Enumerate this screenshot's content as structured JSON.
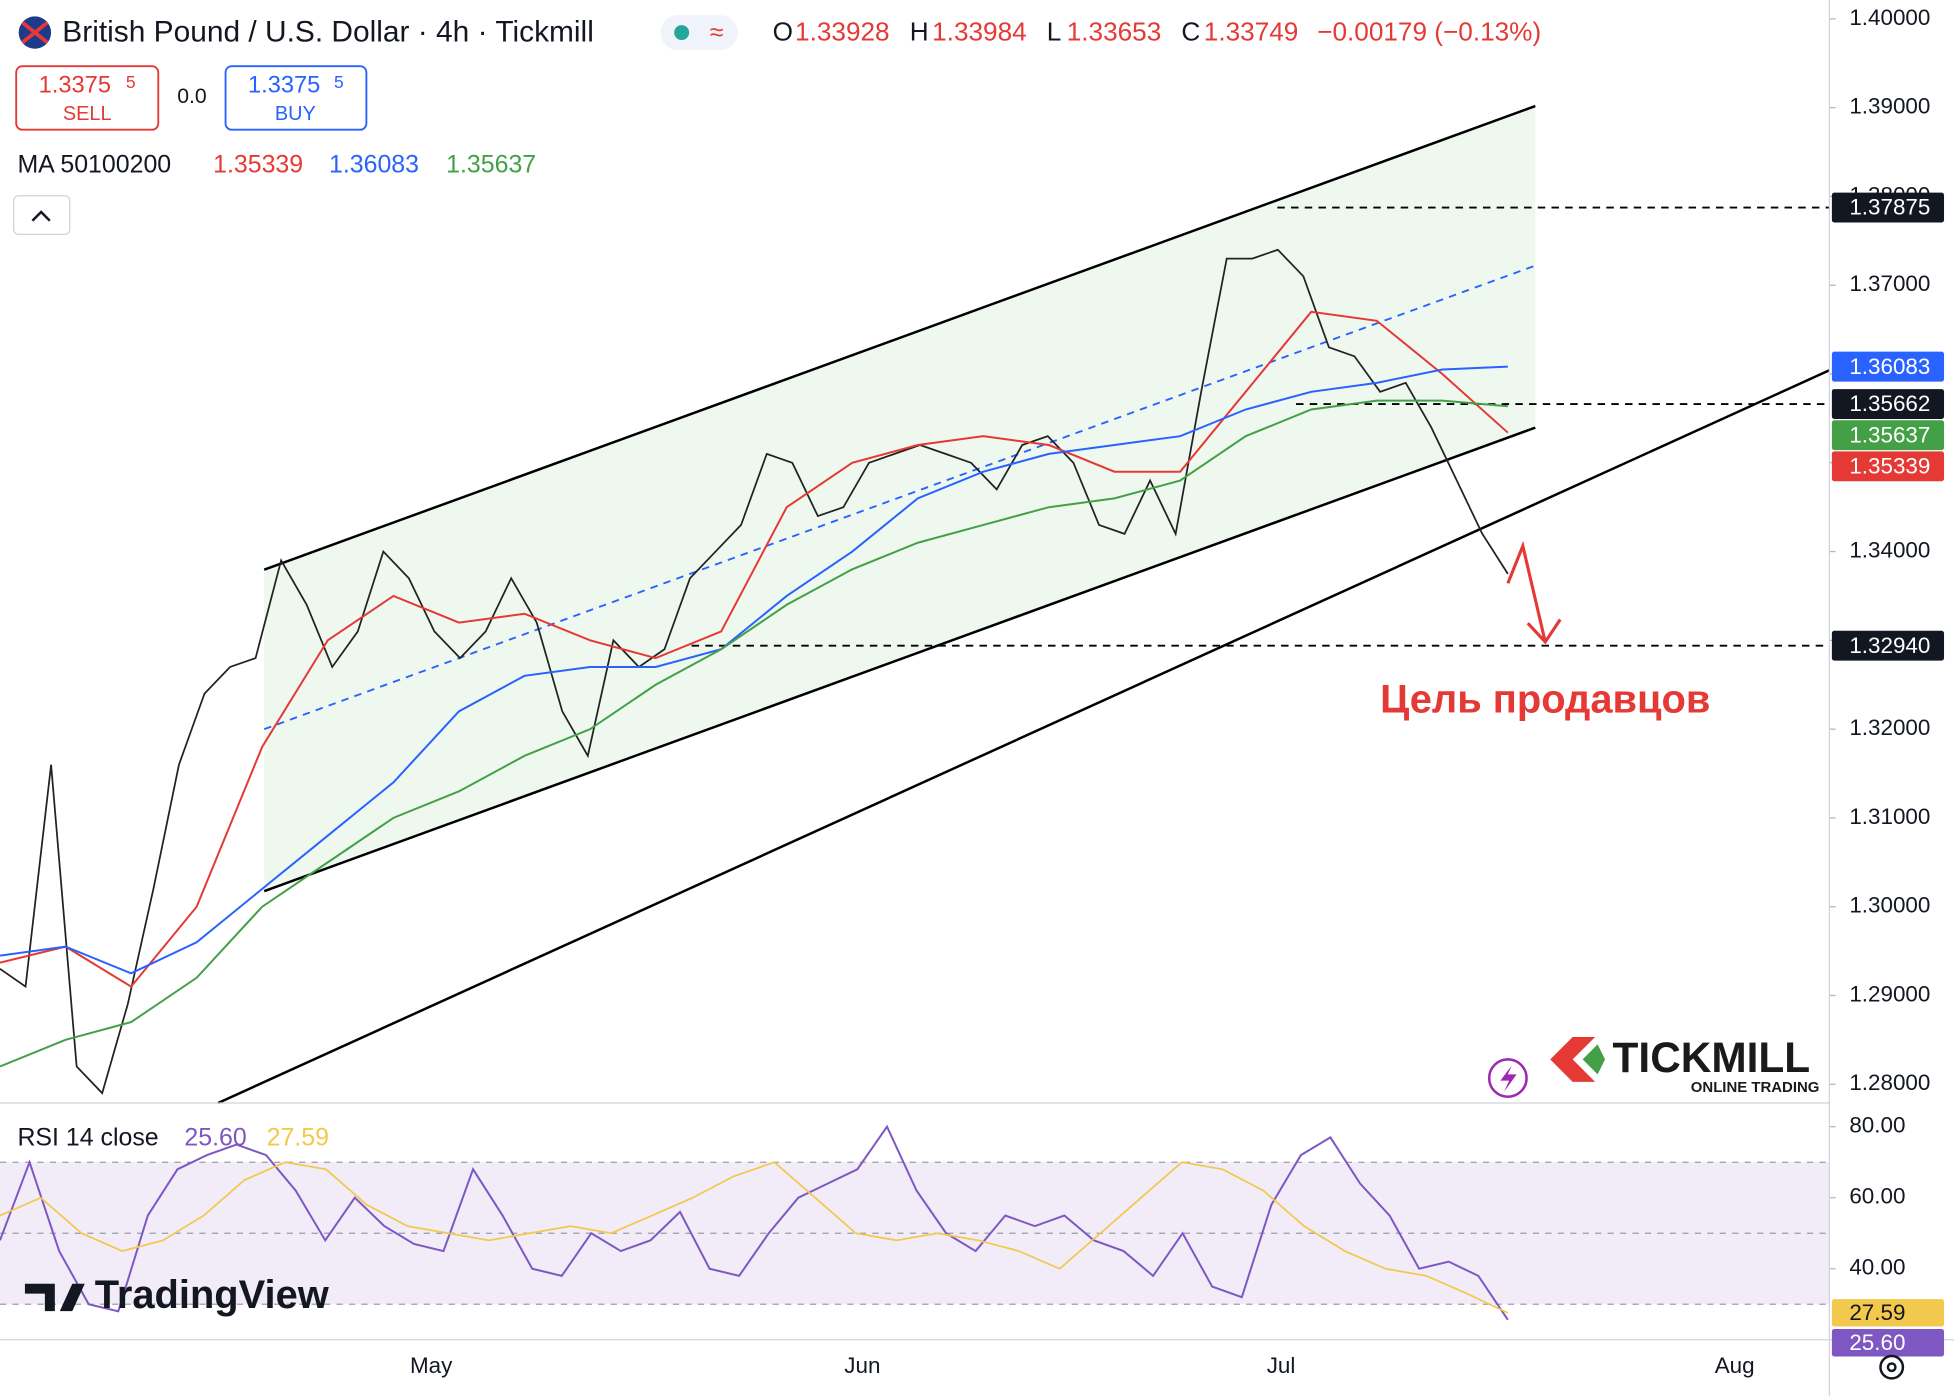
{
  "chart_data": [
    {
      "type": "line",
      "title": "British Pound / U.S. Dollar · 4h · Tickmill",
      "ohlc": [
        {
          "name": "O",
          "value": 1.33928
        },
        {
          "name": "H",
          "value": 1.33984
        },
        {
          "name": "L",
          "value": 1.33653
        },
        {
          "name": "C",
          "value": 1.33749
        }
      ],
      "change": "−0.00179 (−0.13%)",
      "trade": {
        "sell": {
          "price": "1.3375",
          "pip": "5",
          "label": "SELL"
        },
        "spread": "0.0",
        "buy": {
          "price": "1.3375",
          "pip": "5",
          "label": "BUY"
        }
      },
      "ma_legend": "MA 50100200",
      "ylim": [
        1.27789,
        1.40211
      ],
      "yticks": [
        {
          "value": 1.4,
          "label": "1.40000"
        },
        {
          "value": 1.39,
          "label": "1.39000"
        },
        {
          "value": 1.38,
          "label": "1.38000"
        },
        {
          "value": 1.37,
          "label": "1.37000"
        },
        {
          "value": 1.36,
          "label": "1.36000"
        },
        {
          "value": 1.35,
          "label": "1.35000"
        },
        {
          "value": 1.34,
          "label": "1.34000"
        },
        {
          "value": 1.33,
          "label": "1.33000"
        },
        {
          "value": 1.32,
          "label": "1.32000"
        },
        {
          "value": 1.31,
          "label": "1.31000"
        },
        {
          "value": 1.3,
          "label": "1.30000"
        },
        {
          "value": 1.29,
          "label": "1.29000"
        },
        {
          "value": 1.28,
          "label": "1.28000"
        }
      ],
      "x_labels": [
        "May",
        "Jun",
        "Jul",
        "Aug"
      ],
      "series": [
        {
          "color": "#222222",
          "values": [
            1.293,
            1.291,
            1.316,
            1.282,
            1.279,
            1.289,
            1.302,
            1.316,
            1.324,
            1.327,
            1.328,
            1.339,
            1.334,
            1.327,
            1.331,
            1.34,
            1.337,
            1.331,
            1.328,
            1.331,
            1.337,
            1.332,
            1.322,
            1.317,
            1.33,
            1.327,
            1.329,
            1.337,
            1.34,
            1.343,
            1.351,
            1.35,
            1.344,
            1.345,
            1.35,
            1.351,
            1.352,
            1.351,
            1.35,
            1.347,
            1.352,
            1.353,
            1.35,
            1.343,
            1.342,
            1.348,
            1.342,
            1.358,
            1.373,
            1.373,
            1.374,
            1.371,
            1.363,
            1.362,
            1.358,
            1.359,
            1.354,
            1.348,
            1.342,
            1.33749
          ]
        },
        {
          "color": "#e53935",
          "values": [
            1.2937,
            1.2955,
            1.291,
            1.3,
            1.318,
            1.33,
            1.335,
            1.332,
            1.333,
            1.33,
            1.328,
            1.331,
            1.345,
            1.35,
            1.352,
            1.353,
            1.352,
            1.349,
            1.349,
            1.358,
            1.367,
            1.366,
            1.36,
            1.35339
          ]
        },
        {
          "color": "#2962ff",
          "values": [
            1.2945,
            1.2955,
            1.2925,
            1.296,
            1.302,
            1.308,
            1.314,
            1.322,
            1.326,
            1.327,
            1.327,
            1.329,
            1.335,
            1.34,
            1.346,
            1.349,
            1.351,
            1.352,
            1.353,
            1.356,
            1.358,
            1.359,
            1.3605,
            1.36083
          ]
        },
        {
          "color": "#43a047",
          "values": [
            1.282,
            1.285,
            1.287,
            1.292,
            1.3,
            1.305,
            1.31,
            1.313,
            1.317,
            1.32,
            1.325,
            1.329,
            1.334,
            1.338,
            1.341,
            1.343,
            1.345,
            1.346,
            1.348,
            1.353,
            1.356,
            1.357,
            1.357,
            1.35637
          ]
        }
      ],
      "levels": [
        1.37875,
        1.35662,
        {
          "value": 1.3294,
          "label": "1.32940"
        }
      ],
      "channel": {
        "upper": [
          1.33796,
          1.39018
        ],
        "lower": [
          1.30175,
          1.35396
        ],
        "mid": [
          1.32,
          1.37221
        ]
      },
      "trendline": [
        1.27789,
        1.36042
      ],
      "annotation": "Цель продавцов",
      "branding": {
        "tradingview": "TradingView",
        "tickmill": "TICKMILL",
        "tagline": "ONLINE TRADING"
      }
    },
    {
      "type": "line",
      "title": "RSI 14 close",
      "ylim": [
        20,
        86.67
      ],
      "yticks": [
        {
          "value": 80,
          "label": "80.00"
        },
        {
          "value": 60,
          "label": "60.00"
        },
        {
          "value": 40,
          "label": "40.00"
        }
      ],
      "band": [
        30,
        70
      ],
      "midline": 50,
      "series": [
        {
          "color": "#7e57c2",
          "values": [
            48,
            70,
            45,
            30,
            28,
            55,
            68,
            72,
            75,
            72,
            62,
            48,
            60,
            52,
            47,
            45,
            68,
            55,
            40,
            38,
            50,
            45,
            48,
            56,
            40,
            38,
            50,
            60,
            64,
            68,
            80,
            62,
            50,
            45,
            55,
            52,
            55,
            48,
            45,
            38,
            50,
            35,
            32,
            58,
            72,
            77,
            64,
            55,
            40,
            42,
            38,
            25.6
          ],
          "last_label": "25.60"
        },
        {
          "color": "#f2c94c",
          "values": [
            55,
            60,
            50,
            45,
            48,
            55,
            65,
            70,
            68,
            58,
            52,
            50,
            48,
            50,
            52,
            50,
            55,
            60,
            66,
            70,
            60,
            50,
            48,
            50,
            48,
            45,
            40,
            50,
            60,
            70,
            68,
            62,
            52,
            45,
            40,
            38,
            33,
            27.59
          ],
          "last_label": "27.59"
        }
      ]
    }
  ]
}
